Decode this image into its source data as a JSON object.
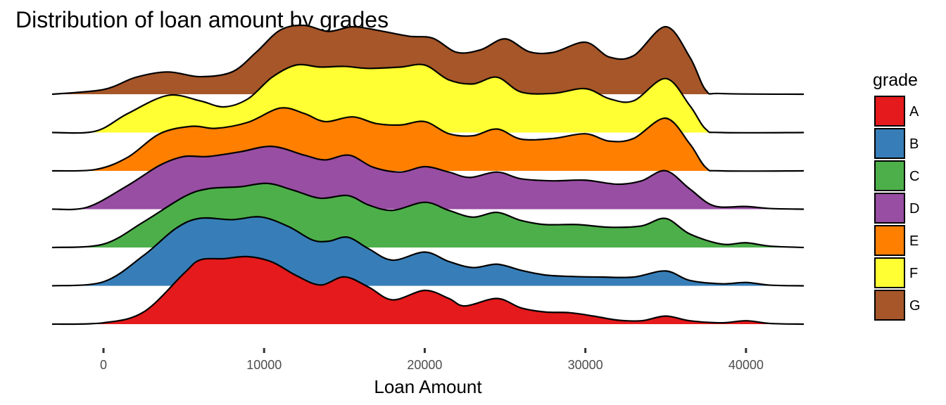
{
  "chart_data": {
    "type": "area",
    "subtype": "ridgeline density",
    "title": "Distribution of loan amount by grades",
    "xlabel": "Loan Amount",
    "ylabel": "",
    "xlim": [
      -3200,
      43600
    ],
    "x_ticks": [
      0,
      10000,
      20000,
      30000,
      40000
    ],
    "x_tick_labels": [
      "0",
      "10000",
      "20000",
      "30000",
      "40000"
    ],
    "grid": false,
    "legend": {
      "title": "grade",
      "position": "right"
    },
    "series": [
      {
        "name": "A",
        "color": "#e41a1c",
        "points": [
          [
            -3200,
            0
          ],
          [
            0,
            0.02
          ],
          [
            2500,
            0.18
          ],
          [
            5000,
            0.75
          ],
          [
            6000,
            0.95
          ],
          [
            7500,
            0.97
          ],
          [
            9000,
            1.0
          ],
          [
            10500,
            0.92
          ],
          [
            12000,
            0.72
          ],
          [
            13500,
            0.58
          ],
          [
            15000,
            0.7
          ],
          [
            16500,
            0.55
          ],
          [
            18000,
            0.36
          ],
          [
            20000,
            0.5
          ],
          [
            21500,
            0.38
          ],
          [
            22500,
            0.27
          ],
          [
            24500,
            0.38
          ],
          [
            26000,
            0.24
          ],
          [
            27500,
            0.18
          ],
          [
            29000,
            0.17
          ],
          [
            30500,
            0.12
          ],
          [
            32000,
            0.06
          ],
          [
            33500,
            0.05
          ],
          [
            35000,
            0.12
          ],
          [
            36500,
            0.05
          ],
          [
            38500,
            0.02
          ],
          [
            40000,
            0.05
          ],
          [
            41500,
            0.01
          ],
          [
            43600,
            0
          ]
        ]
      },
      {
        "name": "B",
        "color": "#377eb8",
        "points": [
          [
            -3200,
            0
          ],
          [
            0,
            0.06
          ],
          [
            2500,
            0.45
          ],
          [
            4500,
            0.85
          ],
          [
            6000,
            1.0
          ],
          [
            8000,
            0.98
          ],
          [
            9800,
            1.02
          ],
          [
            11500,
            0.88
          ],
          [
            13000,
            0.68
          ],
          [
            14000,
            0.66
          ],
          [
            15200,
            0.72
          ],
          [
            16500,
            0.55
          ],
          [
            18000,
            0.38
          ],
          [
            20000,
            0.5
          ],
          [
            21500,
            0.36
          ],
          [
            23000,
            0.27
          ],
          [
            24500,
            0.32
          ],
          [
            26000,
            0.23
          ],
          [
            27500,
            0.16
          ],
          [
            29000,
            0.14
          ],
          [
            31000,
            0.13
          ],
          [
            33000,
            0.13
          ],
          [
            35000,
            0.22
          ],
          [
            36500,
            0.08
          ],
          [
            38500,
            0.03
          ],
          [
            40000,
            0.05
          ],
          [
            41500,
            0.01
          ],
          [
            43600,
            0
          ]
        ]
      },
      {
        "name": "C",
        "color": "#4daf4a",
        "points": [
          [
            -3200,
            0
          ],
          [
            0,
            0.05
          ],
          [
            2500,
            0.38
          ],
          [
            5000,
            0.75
          ],
          [
            6500,
            0.87
          ],
          [
            8500,
            0.9
          ],
          [
            10200,
            0.95
          ],
          [
            11800,
            0.85
          ],
          [
            13500,
            0.73
          ],
          [
            15200,
            0.77
          ],
          [
            16500,
            0.63
          ],
          [
            18000,
            0.55
          ],
          [
            20000,
            0.67
          ],
          [
            21500,
            0.55
          ],
          [
            23000,
            0.45
          ],
          [
            24500,
            0.52
          ],
          [
            26000,
            0.4
          ],
          [
            27500,
            0.34
          ],
          [
            29500,
            0.34
          ],
          [
            31500,
            0.3
          ],
          [
            33500,
            0.32
          ],
          [
            35000,
            0.43
          ],
          [
            36500,
            0.2
          ],
          [
            38500,
            0.05
          ],
          [
            40000,
            0.07
          ],
          [
            41500,
            0.02
          ],
          [
            43600,
            0
          ]
        ]
      },
      {
        "name": "D",
        "color": "#984ea3",
        "points": [
          [
            -3200,
            0
          ],
          [
            -1000,
            0.03
          ],
          [
            1500,
            0.35
          ],
          [
            3500,
            0.65
          ],
          [
            5000,
            0.78
          ],
          [
            6500,
            0.78
          ],
          [
            8500,
            0.85
          ],
          [
            10500,
            0.93
          ],
          [
            12500,
            0.8
          ],
          [
            13800,
            0.73
          ],
          [
            15300,
            0.8
          ],
          [
            16800,
            0.62
          ],
          [
            18500,
            0.55
          ],
          [
            20000,
            0.63
          ],
          [
            21500,
            0.55
          ],
          [
            22800,
            0.47
          ],
          [
            24500,
            0.55
          ],
          [
            26000,
            0.45
          ],
          [
            28000,
            0.42
          ],
          [
            30000,
            0.43
          ],
          [
            32000,
            0.37
          ],
          [
            33500,
            0.42
          ],
          [
            35000,
            0.57
          ],
          [
            36500,
            0.3
          ],
          [
            38000,
            0.05
          ],
          [
            40000,
            0.04
          ],
          [
            41500,
            0.01
          ],
          [
            43600,
            0
          ]
        ]
      },
      {
        "name": "E",
        "color": "#ff7f00",
        "points": [
          [
            -3200,
            0
          ],
          [
            -500,
            0.02
          ],
          [
            1500,
            0.2
          ],
          [
            3500,
            0.55
          ],
          [
            5500,
            0.66
          ],
          [
            7000,
            0.63
          ],
          [
            9000,
            0.72
          ],
          [
            11000,
            0.93
          ],
          [
            12500,
            0.85
          ],
          [
            13800,
            0.73
          ],
          [
            15500,
            0.8
          ],
          [
            17000,
            0.7
          ],
          [
            18500,
            0.68
          ],
          [
            20000,
            0.73
          ],
          [
            21500,
            0.55
          ],
          [
            23000,
            0.52
          ],
          [
            24500,
            0.62
          ],
          [
            26000,
            0.47
          ],
          [
            28000,
            0.48
          ],
          [
            30000,
            0.55
          ],
          [
            31500,
            0.44
          ],
          [
            33000,
            0.48
          ],
          [
            35000,
            0.78
          ],
          [
            36500,
            0.4
          ],
          [
            37500,
            0.05
          ],
          [
            38500,
            0.0
          ],
          [
            43600,
            0
          ]
        ]
      },
      {
        "name": "F",
        "color": "#ffff33",
        "points": [
          [
            -3200,
            0
          ],
          [
            -500,
            0.02
          ],
          [
            1500,
            0.28
          ],
          [
            4000,
            0.55
          ],
          [
            6000,
            0.47
          ],
          [
            7500,
            0.38
          ],
          [
            9000,
            0.5
          ],
          [
            10500,
            0.82
          ],
          [
            12000,
            1.0
          ],
          [
            13500,
            0.97
          ],
          [
            15000,
            0.98
          ],
          [
            16500,
            0.95
          ],
          [
            18500,
            0.97
          ],
          [
            20000,
            1.0
          ],
          [
            21500,
            0.78
          ],
          [
            23000,
            0.72
          ],
          [
            24500,
            0.82
          ],
          [
            26000,
            0.6
          ],
          [
            28000,
            0.58
          ],
          [
            30000,
            0.65
          ],
          [
            31500,
            0.5
          ],
          [
            33000,
            0.47
          ],
          [
            35000,
            0.8
          ],
          [
            36500,
            0.4
          ],
          [
            37500,
            0.05
          ],
          [
            38500,
            0.0
          ],
          [
            43600,
            0
          ]
        ]
      },
      {
        "name": "G",
        "color": "#a65628",
        "points": [
          [
            -3200,
            0
          ],
          [
            0,
            0.07
          ],
          [
            2000,
            0.25
          ],
          [
            4000,
            0.33
          ],
          [
            6000,
            0.26
          ],
          [
            8000,
            0.33
          ],
          [
            9500,
            0.62
          ],
          [
            11000,
            0.95
          ],
          [
            12500,
            1.02
          ],
          [
            14000,
            0.93
          ],
          [
            15500,
            1.0
          ],
          [
            17000,
            0.95
          ],
          [
            19000,
            0.86
          ],
          [
            20500,
            0.83
          ],
          [
            22000,
            0.62
          ],
          [
            23500,
            0.66
          ],
          [
            25000,
            0.82
          ],
          [
            26500,
            0.63
          ],
          [
            28000,
            0.62
          ],
          [
            30000,
            0.77
          ],
          [
            31500,
            0.55
          ],
          [
            33000,
            0.57
          ],
          [
            35000,
            1.0
          ],
          [
            36500,
            0.55
          ],
          [
            37500,
            0.06
          ],
          [
            38500,
            0.01
          ],
          [
            43600,
            0
          ]
        ]
      }
    ]
  }
}
